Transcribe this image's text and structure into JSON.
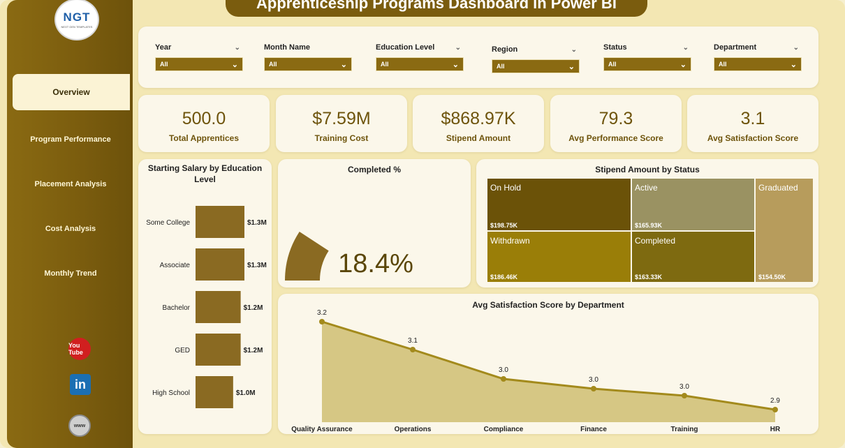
{
  "title": "Apprenticeship Programs Dashboard in Power BI",
  "logo": {
    "text": "NGT",
    "subtext": "NEXT GEN TEMPLATES"
  },
  "nav": [
    {
      "label": "Overview",
      "active": true
    },
    {
      "label": "Program Performance"
    },
    {
      "label": "Placement Analysis"
    },
    {
      "label": "Cost Analysis"
    },
    {
      "label": "Monthly Trend"
    }
  ],
  "social": {
    "youtube": "You Tube",
    "linkedin": "in",
    "web": "www"
  },
  "filters": [
    {
      "label": "Year",
      "value": "All"
    },
    {
      "label": "Month Name",
      "value": "All"
    },
    {
      "label": "Education Level",
      "value": "All"
    },
    {
      "label": "Region",
      "value": "All"
    },
    {
      "label": "Status",
      "value": "All"
    },
    {
      "label": "Department",
      "value": "All"
    }
  ],
  "kpis": [
    {
      "value": "500.0",
      "label": "Total Apprentices"
    },
    {
      "value": "$7.59M",
      "label": "Training Cost"
    },
    {
      "value": "$868.97K",
      "label": "Stipend Amount"
    },
    {
      "value": "79.3",
      "label": "Avg Performance Score"
    },
    {
      "value": "3.1",
      "label": "Avg Satisfaction Score"
    }
  ],
  "colors": {
    "accent": "#7a5c0e",
    "bar": "#8a6a22",
    "area": "#d6c784",
    "line": "#a38a1c"
  },
  "chart_data": [
    {
      "type": "bar",
      "title": "Starting Salary by Education Level",
      "categories": [
        "Some College",
        "Associate",
        "Bachelor",
        "GED",
        "High School"
      ],
      "values": [
        1.3,
        1.3,
        1.2,
        1.2,
        1.0
      ],
      "labels": [
        "$1.3M",
        "$1.3M",
        "$1.2M",
        "$1.2M",
        "$1.0M"
      ],
      "orientation": "horizontal"
    },
    {
      "type": "gauge",
      "title": "Completed %",
      "value": 18.4,
      "label": "18.4%"
    },
    {
      "type": "treemap",
      "title": "Stipend Amount by Status",
      "categories": [
        "On Hold",
        "Withdrawn",
        "Active",
        "Completed",
        "Graduated"
      ],
      "values": [
        198.75,
        186.46,
        165.93,
        163.33,
        154.5
      ],
      "labels": [
        "$198.75K",
        "$186.46K",
        "$165.93K",
        "$163.33K",
        "$154.50K"
      ],
      "colors": [
        "#6b5208",
        "#9a7e08",
        "#9a9262",
        "#7e6a10",
        "#b79c5c"
      ]
    },
    {
      "type": "area",
      "title": "Avg Satisfaction Score by Department",
      "categories": [
        "Quality Assurance",
        "Operations",
        "Compliance",
        "Finance",
        "Training",
        "HR"
      ],
      "values": [
        3.2,
        3.1,
        3.0,
        3.0,
        3.0,
        2.9
      ],
      "labels": [
        "3.2",
        "3.1",
        "3.0",
        "3.0",
        "3.0",
        "2.9"
      ]
    }
  ]
}
